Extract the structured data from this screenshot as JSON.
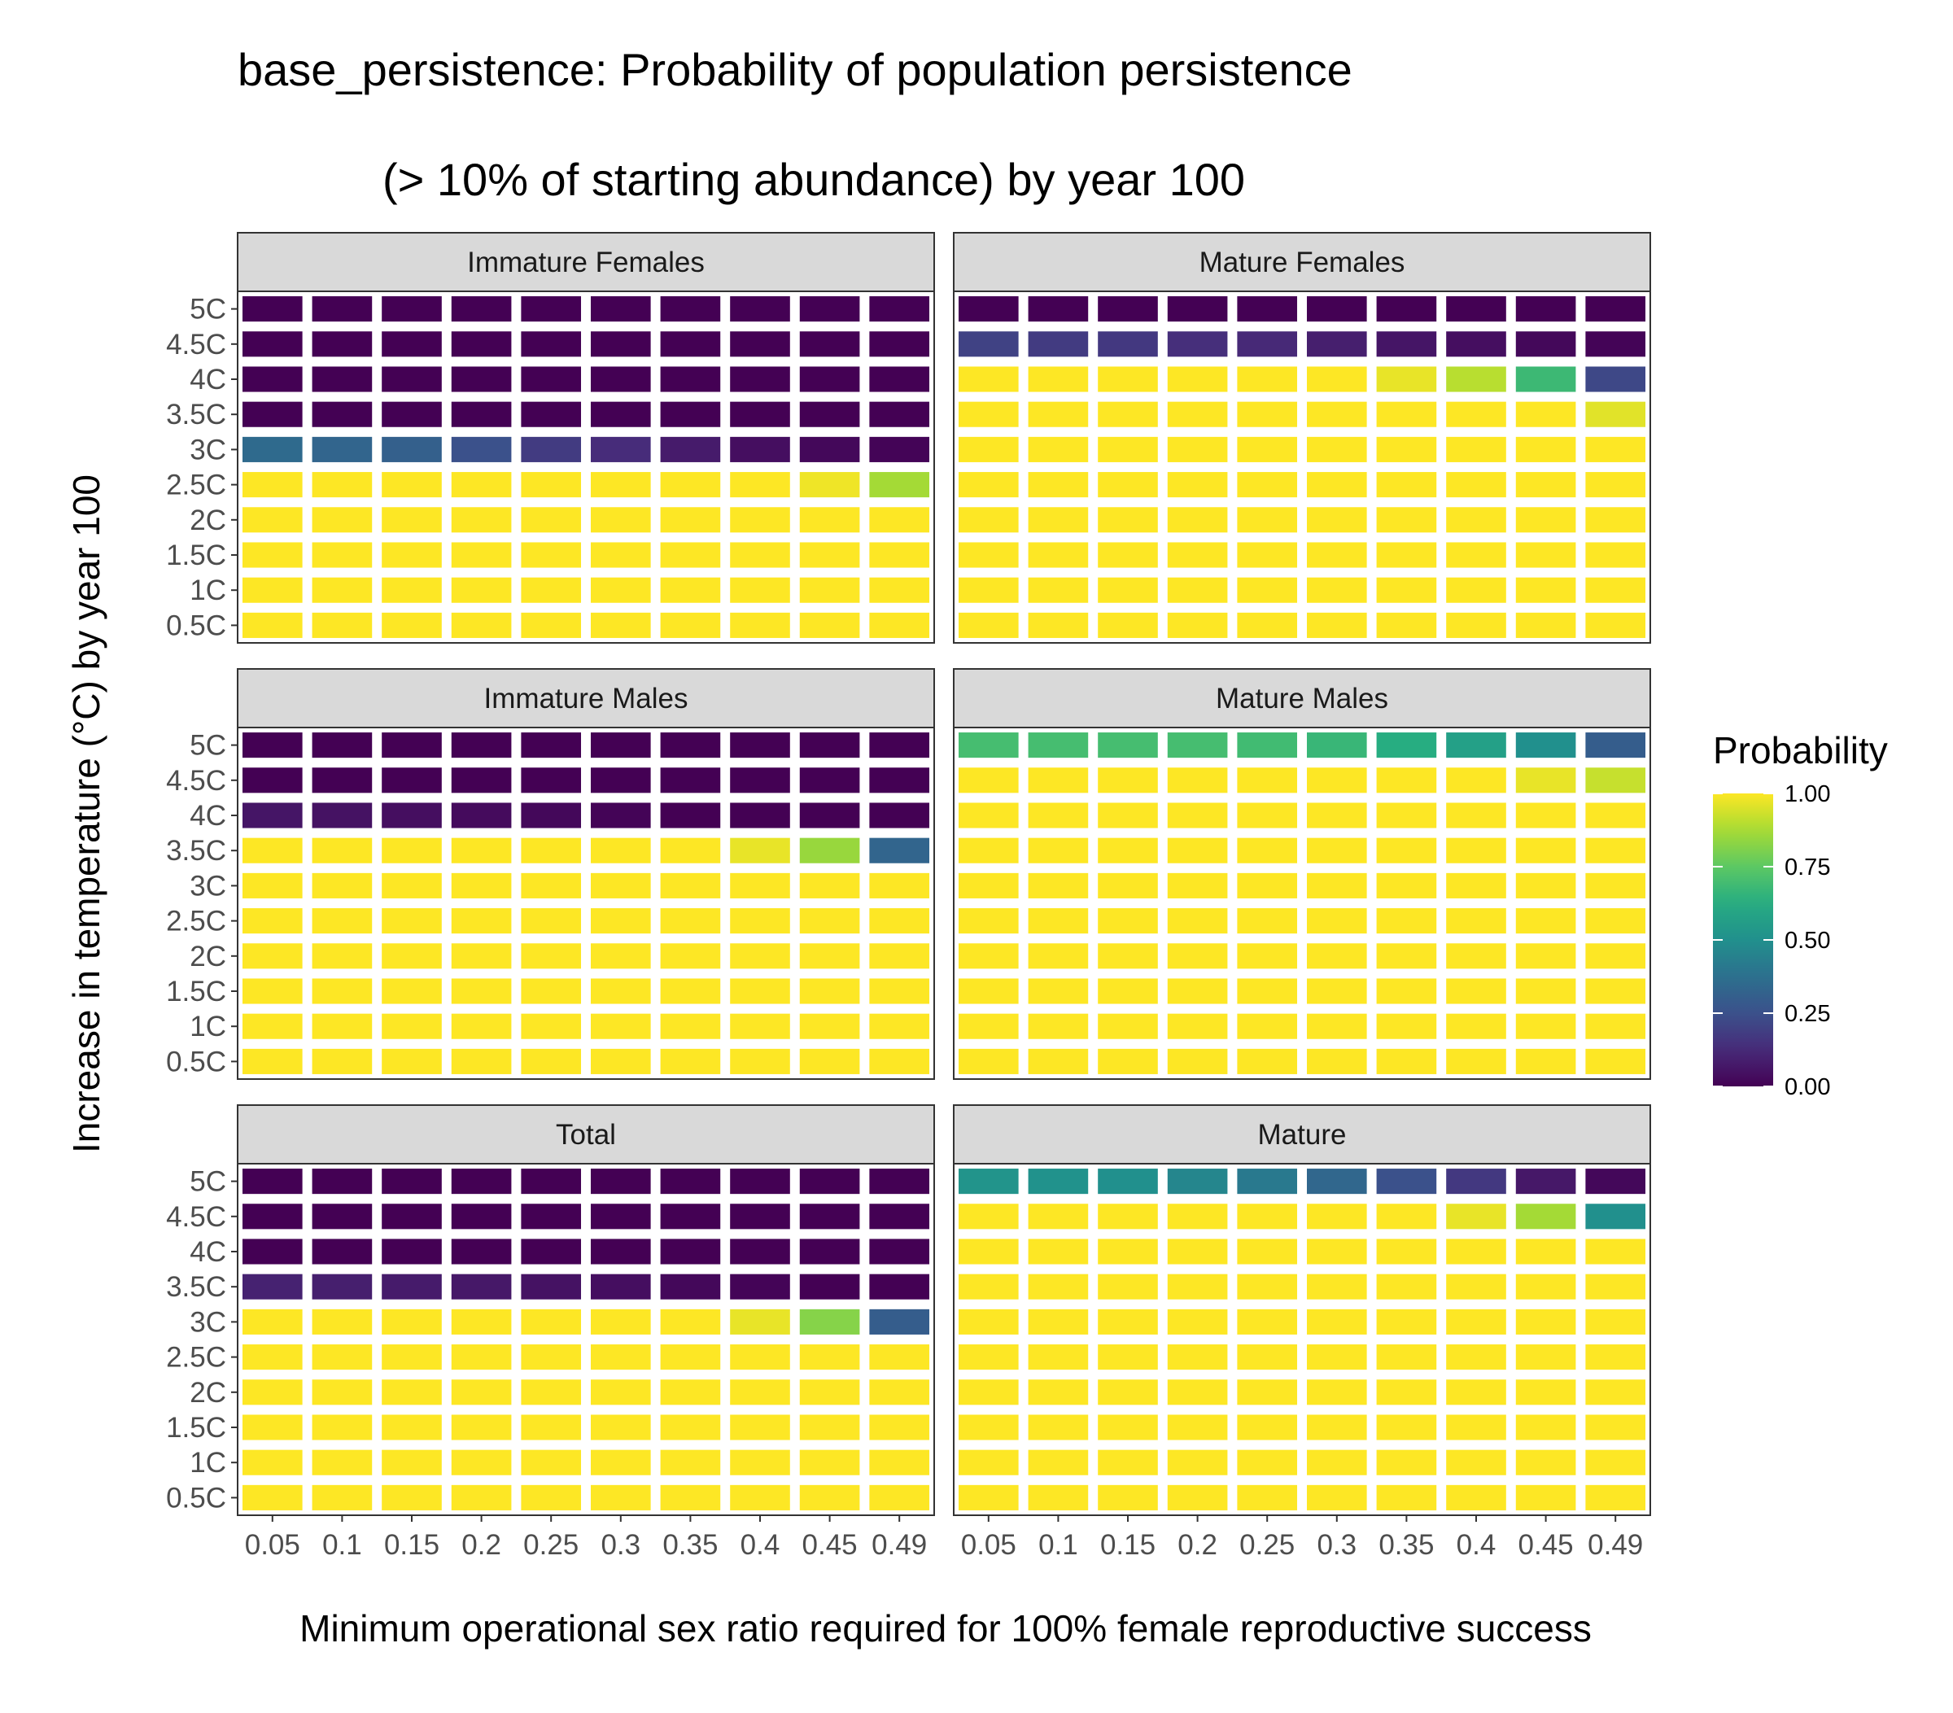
{
  "chart_data": {
    "type": "heatmap",
    "title_lines": [
      "base_persistence: Probability of population persistence",
      "(> 10% of starting abundance) by year 100"
    ],
    "xlabel": "Minimum operational sex ratio required for 100% female reproductive success",
    "ylabel": "Increase in temperature (°C) by year 100",
    "x_categories": [
      "0.05",
      "0.1",
      "0.15",
      "0.2",
      "0.25",
      "0.3",
      "0.35",
      "0.4",
      "0.45",
      "0.49"
    ],
    "y_categories": [
      "0.5C",
      "1C",
      "1.5C",
      "2C",
      "2.5C",
      "3C",
      "3.5C",
      "4C",
      "4.5C",
      "5C"
    ],
    "legend": {
      "title": "Probability",
      "position": "right",
      "ticks": [
        "0.00",
        "0.25",
        "0.50",
        "0.75",
        "1.00"
      ],
      "range": [
        0,
        1
      ],
      "colormap": "viridis"
    },
    "panels": [
      {
        "name": "Immature Females",
        "values": [
          [
            1,
            1,
            1,
            1,
            1,
            1,
            1,
            1,
            1,
            1
          ],
          [
            1,
            1,
            1,
            1,
            1,
            1,
            1,
            1,
            1,
            1
          ],
          [
            1,
            1,
            1,
            1,
            1,
            1,
            1,
            1,
            1,
            1
          ],
          [
            1,
            1,
            1,
            1,
            1,
            1,
            1,
            1,
            1,
            1
          ],
          [
            1,
            1,
            1,
            1,
            1,
            1,
            1,
            1,
            0.98,
            0.87
          ],
          [
            0.35,
            0.33,
            0.31,
            0.25,
            0.18,
            0.13,
            0.08,
            0.04,
            0.02,
            0.01
          ],
          [
            0,
            0,
            0,
            0,
            0,
            0,
            0,
            0,
            0,
            0
          ],
          [
            0,
            0,
            0,
            0,
            0,
            0,
            0,
            0,
            0,
            0
          ],
          [
            0,
            0,
            0,
            0,
            0,
            0,
            0,
            0,
            0,
            0
          ],
          [
            0,
            0,
            0,
            0,
            0,
            0,
            0,
            0,
            0,
            0
          ]
        ]
      },
      {
        "name": "Mature Females",
        "values": [
          [
            1,
            1,
            1,
            1,
            1,
            1,
            1,
            1,
            1,
            1
          ],
          [
            1,
            1,
            1,
            1,
            1,
            1,
            1,
            1,
            1,
            1
          ],
          [
            1,
            1,
            1,
            1,
            1,
            1,
            1,
            1,
            1,
            1
          ],
          [
            1,
            1,
            1,
            1,
            1,
            1,
            1,
            1,
            1,
            1
          ],
          [
            1,
            1,
            1,
            1,
            1,
            1,
            1,
            1,
            1,
            1
          ],
          [
            1,
            1,
            1,
            1,
            1,
            1,
            1,
            1,
            1,
            1
          ],
          [
            1,
            1,
            1,
            1,
            1,
            1,
            1,
            1,
            1,
            0.96
          ],
          [
            1,
            1,
            1,
            1,
            1,
            1,
            0.97,
            0.9,
            0.68,
            0.22
          ],
          [
            0.2,
            0.18,
            0.17,
            0.14,
            0.12,
            0.09,
            0.06,
            0.04,
            0.02,
            0.01
          ],
          [
            0,
            0,
            0,
            0,
            0,
            0,
            0,
            0,
            0,
            0
          ]
        ]
      },
      {
        "name": "Immature Males",
        "values": [
          [
            1,
            1,
            1,
            1,
            1,
            1,
            1,
            1,
            1,
            1
          ],
          [
            1,
            1,
            1,
            1,
            1,
            1,
            1,
            1,
            1,
            1
          ],
          [
            1,
            1,
            1,
            1,
            1,
            1,
            1,
            1,
            1,
            1
          ],
          [
            1,
            1,
            1,
            1,
            1,
            1,
            1,
            1,
            1,
            1
          ],
          [
            1,
            1,
            1,
            1,
            1,
            1,
            1,
            1,
            1,
            1
          ],
          [
            1,
            1,
            1,
            1,
            1,
            1,
            1,
            1,
            1,
            1
          ],
          [
            1,
            1,
            1,
            1,
            1,
            1,
            1,
            0.97,
            0.85,
            0.33
          ],
          [
            0.06,
            0.05,
            0.04,
            0.03,
            0.02,
            0.01,
            0,
            0,
            0,
            0
          ],
          [
            0,
            0,
            0,
            0,
            0,
            0,
            0,
            0,
            0,
            0
          ],
          [
            0,
            0,
            0,
            0,
            0,
            0,
            0,
            0,
            0,
            0
          ]
        ]
      },
      {
        "name": "Mature Males",
        "values": [
          [
            1,
            1,
            1,
            1,
            1,
            1,
            1,
            1,
            1,
            1
          ],
          [
            1,
            1,
            1,
            1,
            1,
            1,
            1,
            1,
            1,
            1
          ],
          [
            1,
            1,
            1,
            1,
            1,
            1,
            1,
            1,
            1,
            1
          ],
          [
            1,
            1,
            1,
            1,
            1,
            1,
            1,
            1,
            1,
            1
          ],
          [
            1,
            1,
            1,
            1,
            1,
            1,
            1,
            1,
            1,
            1
          ],
          [
            1,
            1,
            1,
            1,
            1,
            1,
            1,
            1,
            1,
            1
          ],
          [
            1,
            1,
            1,
            1,
            1,
            1,
            1,
            1,
            1,
            1
          ],
          [
            1,
            1,
            1,
            1,
            1,
            1,
            1,
            1,
            1,
            1
          ],
          [
            1,
            1,
            1,
            1,
            1,
            1,
            1,
            1,
            0.97,
            0.92
          ],
          [
            0.7,
            0.7,
            0.7,
            0.7,
            0.69,
            0.67,
            0.63,
            0.57,
            0.5,
            0.3
          ]
        ]
      },
      {
        "name": "Total",
        "values": [
          [
            1,
            1,
            1,
            1,
            1,
            1,
            1,
            1,
            1,
            1
          ],
          [
            1,
            1,
            1,
            1,
            1,
            1,
            1,
            1,
            1,
            1
          ],
          [
            1,
            1,
            1,
            1,
            1,
            1,
            1,
            1,
            1,
            1
          ],
          [
            1,
            1,
            1,
            1,
            1,
            1,
            1,
            1,
            1,
            1
          ],
          [
            1,
            1,
            1,
            1,
            1,
            1,
            1,
            1,
            1,
            1
          ],
          [
            1,
            1,
            1,
            1,
            1,
            1,
            1,
            0.97,
            0.82,
            0.3
          ],
          [
            0.1,
            0.09,
            0.08,
            0.07,
            0.05,
            0.04,
            0.02,
            0.01,
            0,
            0
          ],
          [
            0,
            0,
            0,
            0,
            0,
            0,
            0,
            0,
            0,
            0
          ],
          [
            0,
            0,
            0,
            0,
            0,
            0,
            0,
            0,
            0,
            0
          ],
          [
            0,
            0,
            0,
            0,
            0,
            0,
            0,
            0,
            0,
            0
          ]
        ]
      },
      {
        "name": "Mature",
        "values": [
          [
            1,
            1,
            1,
            1,
            1,
            1,
            1,
            1,
            1,
            1
          ],
          [
            1,
            1,
            1,
            1,
            1,
            1,
            1,
            1,
            1,
            1
          ],
          [
            1,
            1,
            1,
            1,
            1,
            1,
            1,
            1,
            1,
            1
          ],
          [
            1,
            1,
            1,
            1,
            1,
            1,
            1,
            1,
            1,
            1
          ],
          [
            1,
            1,
            1,
            1,
            1,
            1,
            1,
            1,
            1,
            1
          ],
          [
            1,
            1,
            1,
            1,
            1,
            1,
            1,
            1,
            1,
            1
          ],
          [
            1,
            1,
            1,
            1,
            1,
            1,
            1,
            1,
            1,
            1
          ],
          [
            1,
            1,
            1,
            1,
            1,
            1,
            1,
            1,
            1,
            1
          ],
          [
            1,
            1,
            1,
            1,
            1,
            1,
            1,
            0.97,
            0.87,
            0.5
          ],
          [
            0.52,
            0.51,
            0.5,
            0.46,
            0.41,
            0.34,
            0.25,
            0.17,
            0.07,
            0.02
          ]
        ]
      }
    ]
  }
}
